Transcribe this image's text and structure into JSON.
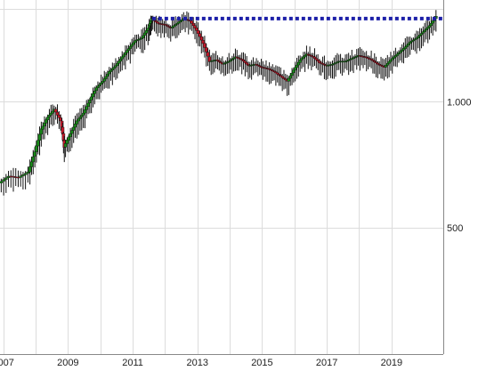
{
  "chart_data": {
    "type": "candlestick",
    "title": "",
    "xlabel": "",
    "ylabel": "",
    "y_scale": "log",
    "ylim": [
      250,
      1750
    ],
    "xlim": [
      2006.9,
      2020.6
    ],
    "grid": true,
    "y_axis_side": "right",
    "x_tick_labels": [
      "2007",
      "2009",
      "2011",
      "2013",
      "2015",
      "2017",
      "2019"
    ],
    "x_tick_values": [
      2007,
      2009,
      2011,
      2013,
      2015,
      2017,
      2019
    ],
    "y_tick_labels": [
      "1.000",
      "500"
    ],
    "y_tick_values": [
      1000,
      500
    ],
    "colors": {
      "up": "#1a8a1a",
      "down": "#c0182a",
      "wick": "#111111",
      "level_line": "#1c1fa8"
    },
    "level_line": {
      "value": 1580,
      "from": 2011.6,
      "to": 2020.6,
      "style": "dotted"
    },
    "series": [
      {
        "x": [
          2006.9,
          2007.2,
          2007.5,
          2007.8,
          2008.0,
          2008.2,
          2008.4,
          2008.6,
          2008.8,
          2008.9,
          2009.1,
          2009.3,
          2009.5,
          2009.7,
          2009.9,
          2010.1,
          2010.3,
          2010.5,
          2010.7,
          2010.9,
          2011.1,
          2011.3,
          2011.5,
          2011.6,
          2011.8,
          2012.0,
          2012.2,
          2012.4,
          2012.6,
          2012.8,
          2013.0,
          2013.2,
          2013.4,
          2013.6,
          2013.8,
          2014.0,
          2014.2,
          2014.4,
          2014.6,
          2014.8,
          2015.0,
          2015.2,
          2015.4,
          2015.6,
          2015.8,
          2016.0,
          2016.2,
          2016.4,
          2016.6,
          2016.8,
          2017.0,
          2017.2,
          2017.4,
          2017.6,
          2017.8,
          2018.0,
          2018.2,
          2018.4,
          2018.6,
          2018.8,
          2019.0,
          2019.2,
          2019.4,
          2019.6,
          2019.8,
          2020.0,
          2020.2,
          2020.4
        ],
        "y": [
          640,
          665,
          660,
          680,
          760,
          860,
          920,
          960,
          900,
          780,
          840,
          900,
          940,
          1010,
          1080,
          1120,
          1180,
          1220,
          1280,
          1340,
          1400,
          1420,
          1500,
          1580,
          1540,
          1530,
          1500,
          1540,
          1580,
          1560,
          1480,
          1380,
          1250,
          1260,
          1230,
          1250,
          1280,
          1260,
          1220,
          1230,
          1210,
          1200,
          1180,
          1150,
          1120,
          1190,
          1260,
          1300,
          1280,
          1240,
          1220,
          1230,
          1250,
          1250,
          1270,
          1290,
          1280,
          1260,
          1230,
          1210,
          1260,
          1300,
          1340,
          1390,
          1420,
          1470,
          1520,
          1600
        ]
      }
    ]
  }
}
